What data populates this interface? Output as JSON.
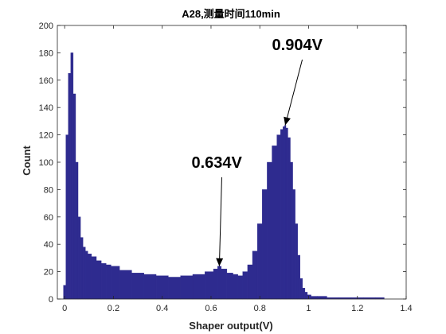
{
  "colors": {
    "series": "#2e2b8f",
    "axis": "#262626",
    "annotation": "#000000",
    "background": "#ffffff"
  },
  "chart_data": {
    "type": "bar",
    "title": "A28,测量时间110min",
    "xlabel": "Shaper output(V)",
    "ylabel": "Count",
    "xlim": [
      -0.03,
      1.4
    ],
    "ylim": [
      0,
      200
    ],
    "grid": false,
    "xticks": [
      "0",
      "0.2",
      "0.4",
      "0.6",
      "0.8",
      "1",
      "1.2",
      "1.4"
    ],
    "yticks": [
      "0",
      "20",
      "40",
      "60",
      "80",
      "100",
      "120",
      "140",
      "160",
      "180",
      "200"
    ],
    "series": [
      {
        "x": [
          0.0,
          0.01,
          0.02,
          0.03,
          0.04,
          0.05,
          0.06,
          0.07,
          0.08,
          0.09,
          0.1,
          0.12,
          0.14,
          0.16,
          0.18,
          0.2,
          0.25,
          0.3,
          0.35,
          0.4,
          0.45,
          0.5,
          0.55,
          0.6,
          0.62,
          0.634,
          0.65,
          0.68,
          0.7,
          0.72,
          0.74,
          0.76,
          0.78,
          0.8,
          0.82,
          0.84,
          0.86,
          0.88,
          0.89,
          0.9,
          0.904,
          0.91,
          0.92,
          0.93,
          0.94,
          0.95,
          0.96,
          0.97,
          0.98,
          0.99,
          1.0,
          1.02,
          1.05,
          1.1,
          1.15,
          1.2,
          1.25,
          1.3,
          1.32
        ],
        "values": [
          10,
          120,
          165,
          180,
          150,
          100,
          60,
          45,
          38,
          35,
          33,
          31,
          28,
          26,
          25,
          24,
          21,
          19,
          18,
          17,
          16,
          17,
          18,
          20,
          22,
          24,
          22,
          19,
          18,
          17,
          20,
          25,
          35,
          55,
          80,
          100,
          112,
          120,
          124,
          126,
          127,
          125,
          118,
          100,
          80,
          55,
          32,
          15,
          8,
          5,
          3,
          2,
          2,
          1,
          1,
          1,
          1,
          1,
          0
        ]
      }
    ],
    "annotations": [
      {
        "label": "0.634V",
        "x": 0.634,
        "y": 24,
        "text_x": 0.52,
        "text_y": 96
      },
      {
        "label": "0.904V",
        "x": 0.904,
        "y": 127,
        "text_x": 0.85,
        "text_y": 182
      }
    ]
  }
}
